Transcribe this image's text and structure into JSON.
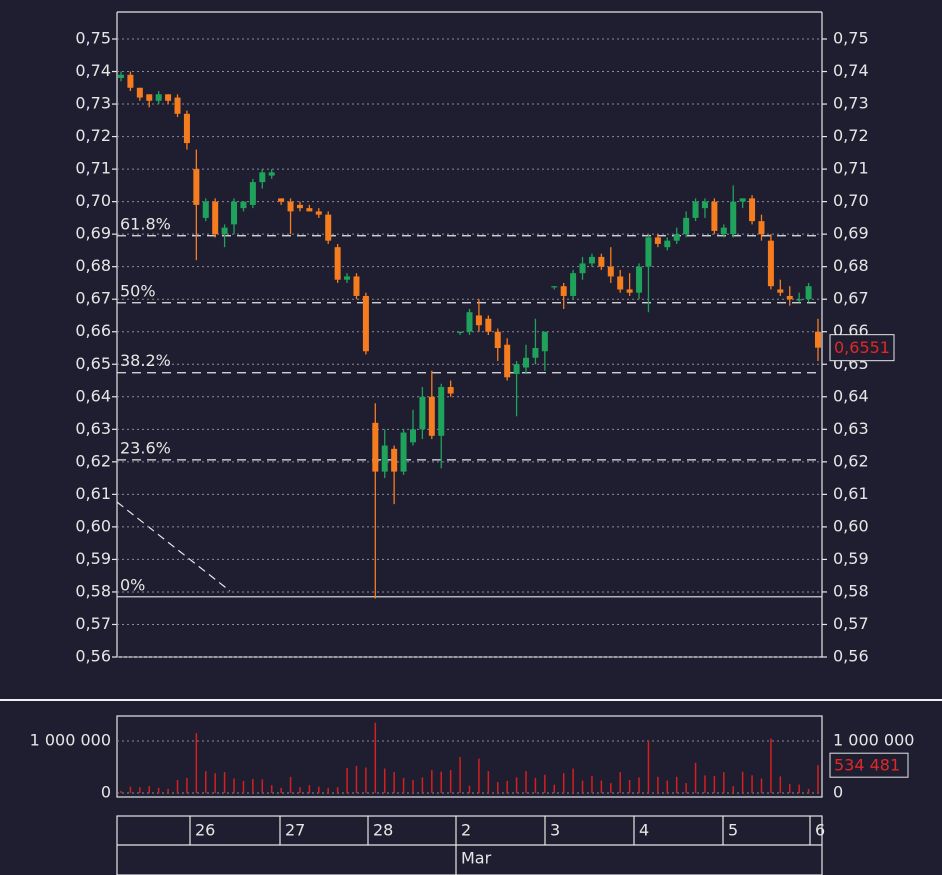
{
  "chart_data": {
    "type": "candlestick",
    "up_color": "#1fa35c",
    "down_color": "#f57c1f",
    "volume_color": "#d42020",
    "ylim": [
      0.56,
      0.7583
    ],
    "yticks": [
      {
        "value": 0.56,
        "label": "0,56"
      },
      {
        "value": 0.57,
        "label": "0,57"
      },
      {
        "value": 0.58,
        "label": "0,58"
      },
      {
        "value": 0.59,
        "label": "0,59"
      },
      {
        "value": 0.6,
        "label": "0,60"
      },
      {
        "value": 0.61,
        "label": "0,61"
      },
      {
        "value": 0.62,
        "label": "0,62"
      },
      {
        "value": 0.63,
        "label": "0,63"
      },
      {
        "value": 0.64,
        "label": "0,64"
      },
      {
        "value": 0.65,
        "label": "0,65"
      },
      {
        "value": 0.66,
        "label": "0,66"
      },
      {
        "value": 0.67,
        "label": "0,67"
      },
      {
        "value": 0.68,
        "label": "0,68"
      },
      {
        "value": 0.69,
        "label": "0,69"
      },
      {
        "value": 0.7,
        "label": "0,70"
      },
      {
        "value": 0.71,
        "label": "0,71"
      },
      {
        "value": 0.72,
        "label": "0,72"
      },
      {
        "value": 0.73,
        "label": "0,73"
      },
      {
        "value": 0.74,
        "label": "0,74"
      },
      {
        "value": 0.75,
        "label": "0,75"
      }
    ],
    "grid": true,
    "fib_levels": [
      {
        "label": "61.8%",
        "value": 0.6895,
        "style": "dashed"
      },
      {
        "label": "50%",
        "value": 0.6689,
        "style": "dashed"
      },
      {
        "label": "38.2%",
        "value": 0.6474,
        "style": "dashed"
      },
      {
        "label": "23.6%",
        "value": 0.6206,
        "style": "dashed"
      },
      {
        "label": "0%",
        "value": 0.5785,
        "style": "solid"
      }
    ],
    "candles": [
      [
        0.738,
        0.74,
        0.737,
        0.739
      ],
      [
        0.739,
        0.74,
        0.734,
        0.735
      ],
      [
        0.735,
        0.735,
        0.731,
        0.732
      ],
      [
        0.733,
        0.733,
        0.729,
        0.731
      ],
      [
        0.731,
        0.734,
        0.73,
        0.733
      ],
      [
        0.733,
        0.733,
        0.73,
        0.731
      ],
      [
        0.732,
        0.733,
        0.726,
        0.727
      ],
      [
        0.727,
        0.728,
        0.716,
        0.718
      ],
      [
        0.71,
        0.716,
        0.682,
        0.699
      ],
      [
        0.695,
        0.701,
        0.694,
        0.7
      ],
      [
        0.7,
        0.701,
        0.689,
        0.69
      ],
      [
        0.69,
        0.693,
        0.686,
        0.692
      ],
      [
        0.693,
        0.701,
        0.69,
        0.7
      ],
      [
        0.698,
        0.7,
        0.697,
        0.7
      ],
      [
        0.699,
        0.707,
        0.698,
        0.706
      ],
      [
        0.706,
        0.71,
        0.704,
        0.709
      ],
      [
        0.708,
        0.71,
        0.707,
        0.709
      ],
      [
        0.701,
        0.701,
        0.699,
        0.7
      ],
      [
        0.7,
        0.701,
        0.69,
        0.697
      ],
      [
        0.699,
        0.7,
        0.697,
        0.698
      ],
      [
        0.698,
        0.699,
        0.697,
        0.697
      ],
      [
        0.697,
        0.698,
        0.695,
        0.696
      ],
      [
        0.696,
        0.697,
        0.687,
        0.688
      ],
      [
        0.686,
        0.687,
        0.675,
        0.676
      ],
      [
        0.676,
        0.678,
        0.675,
        0.677
      ],
      [
        0.677,
        0.678,
        0.67,
        0.671
      ],
      [
        0.671,
        0.672,
        0.653,
        0.654
      ],
      [
        0.632,
        0.638,
        0.578,
        0.617
      ],
      [
        0.617,
        0.63,
        0.615,
        0.625
      ],
      [
        0.624,
        0.625,
        0.607,
        0.617
      ],
      [
        0.617,
        0.63,
        0.616,
        0.629
      ],
      [
        0.626,
        0.636,
        0.625,
        0.63
      ],
      [
        0.63,
        0.643,
        0.627,
        0.64
      ],
      [
        0.64,
        0.648,
        0.627,
        0.628
      ],
      [
        0.628,
        0.644,
        0.618,
        0.643
      ],
      [
        0.643,
        0.645,
        0.64,
        0.641
      ],
      [
        0.66,
        0.66,
        0.659,
        0.66
      ],
      [
        0.66,
        0.667,
        0.659,
        0.666
      ],
      [
        0.665,
        0.67,
        0.66,
        0.662
      ],
      [
        0.664,
        0.665,
        0.659,
        0.66
      ],
      [
        0.66,
        0.661,
        0.651,
        0.655
      ],
      [
        0.656,
        0.658,
        0.645,
        0.646
      ],
      [
        0.647,
        0.651,
        0.634,
        0.65
      ],
      [
        0.649,
        0.656,
        0.647,
        0.652
      ],
      [
        0.652,
        0.664,
        0.65,
        0.655
      ],
      [
        0.654,
        0.66,
        0.648,
        0.66
      ],
      [
        0.674,
        0.674,
        0.673,
        0.674
      ],
      [
        0.674,
        0.675,
        0.667,
        0.671
      ],
      [
        0.671,
        0.679,
        0.67,
        0.678
      ],
      [
        0.678,
        0.683,
        0.676,
        0.681
      ],
      [
        0.681,
        0.684,
        0.68,
        0.683
      ],
      [
        0.683,
        0.684,
        0.679,
        0.68
      ],
      [
        0.68,
        0.686,
        0.675,
        0.677
      ],
      [
        0.677,
        0.679,
        0.672,
        0.673
      ],
      [
        0.673,
        0.678,
        0.671,
        0.672
      ],
      [
        0.672,
        0.681,
        0.67,
        0.68
      ],
      [
        0.68,
        0.69,
        0.666,
        0.689
      ],
      [
        0.689,
        0.69,
        0.686,
        0.687
      ],
      [
        0.686,
        0.689,
        0.685,
        0.688
      ],
      [
        0.688,
        0.692,
        0.687,
        0.69
      ],
      [
        0.69,
        0.697,
        0.689,
        0.695
      ],
      [
        0.695,
        0.701,
        0.694,
        0.7
      ],
      [
        0.698,
        0.701,
        0.695,
        0.7
      ],
      [
        0.7,
        0.701,
        0.69,
        0.691
      ],
      [
        0.69,
        0.693,
        0.689,
        0.692
      ],
      [
        0.69,
        0.705,
        0.689,
        0.7
      ],
      [
        0.7,
        0.701,
        0.698,
        0.701
      ],
      [
        0.701,
        0.702,
        0.693,
        0.694
      ],
      [
        0.694,
        0.696,
        0.688,
        0.69
      ],
      [
        0.688,
        0.69,
        0.673,
        0.674
      ],
      [
        0.673,
        0.676,
        0.671,
        0.672
      ],
      [
        0.671,
        0.674,
        0.668,
        0.67
      ],
      [
        0.67,
        0.672,
        0.669,
        0.67
      ],
      [
        0.67,
        0.675,
        0.669,
        0.674
      ],
      [
        0.66,
        0.664,
        0.651,
        0.6551
      ]
    ],
    "last_price": {
      "value": 0.6551,
      "label": "0,6551"
    },
    "volume": {
      "ylim": [
        -77000,
        1480000
      ],
      "yticks": [
        {
          "value": 0,
          "label": "0"
        },
        {
          "value": 1000000,
          "label": "1 000 000"
        }
      ],
      "values": [
        40000,
        120000,
        110000,
        130000,
        100000,
        80000,
        250000,
        290000,
        1150000,
        420000,
        380000,
        400000,
        280000,
        230000,
        270000,
        260000,
        150000,
        100000,
        310000,
        110000,
        150000,
        120000,
        100000,
        110000,
        480000,
        520000,
        490000,
        1350000,
        470000,
        400000,
        290000,
        250000,
        300000,
        440000,
        410000,
        440000,
        690000,
        140000,
        660000,
        420000,
        210000,
        230000,
        300000,
        420000,
        290000,
        350000,
        160000,
        380000,
        470000,
        240000,
        330000,
        240000,
        190000,
        400000,
        250000,
        300000,
        1000000,
        310000,
        240000,
        310000,
        190000,
        580000,
        340000,
        330000,
        400000,
        130000,
        410000,
        340000,
        280000,
        1050000,
        320000,
        170000,
        160000,
        80000,
        534481
      ],
      "last": {
        "value": 534481,
        "label": "534 481"
      }
    },
    "date_labels": [
      "26",
      "27",
      "28",
      "2",
      "3",
      "4",
      "5",
      "6"
    ],
    "month_label": "Mar"
  }
}
